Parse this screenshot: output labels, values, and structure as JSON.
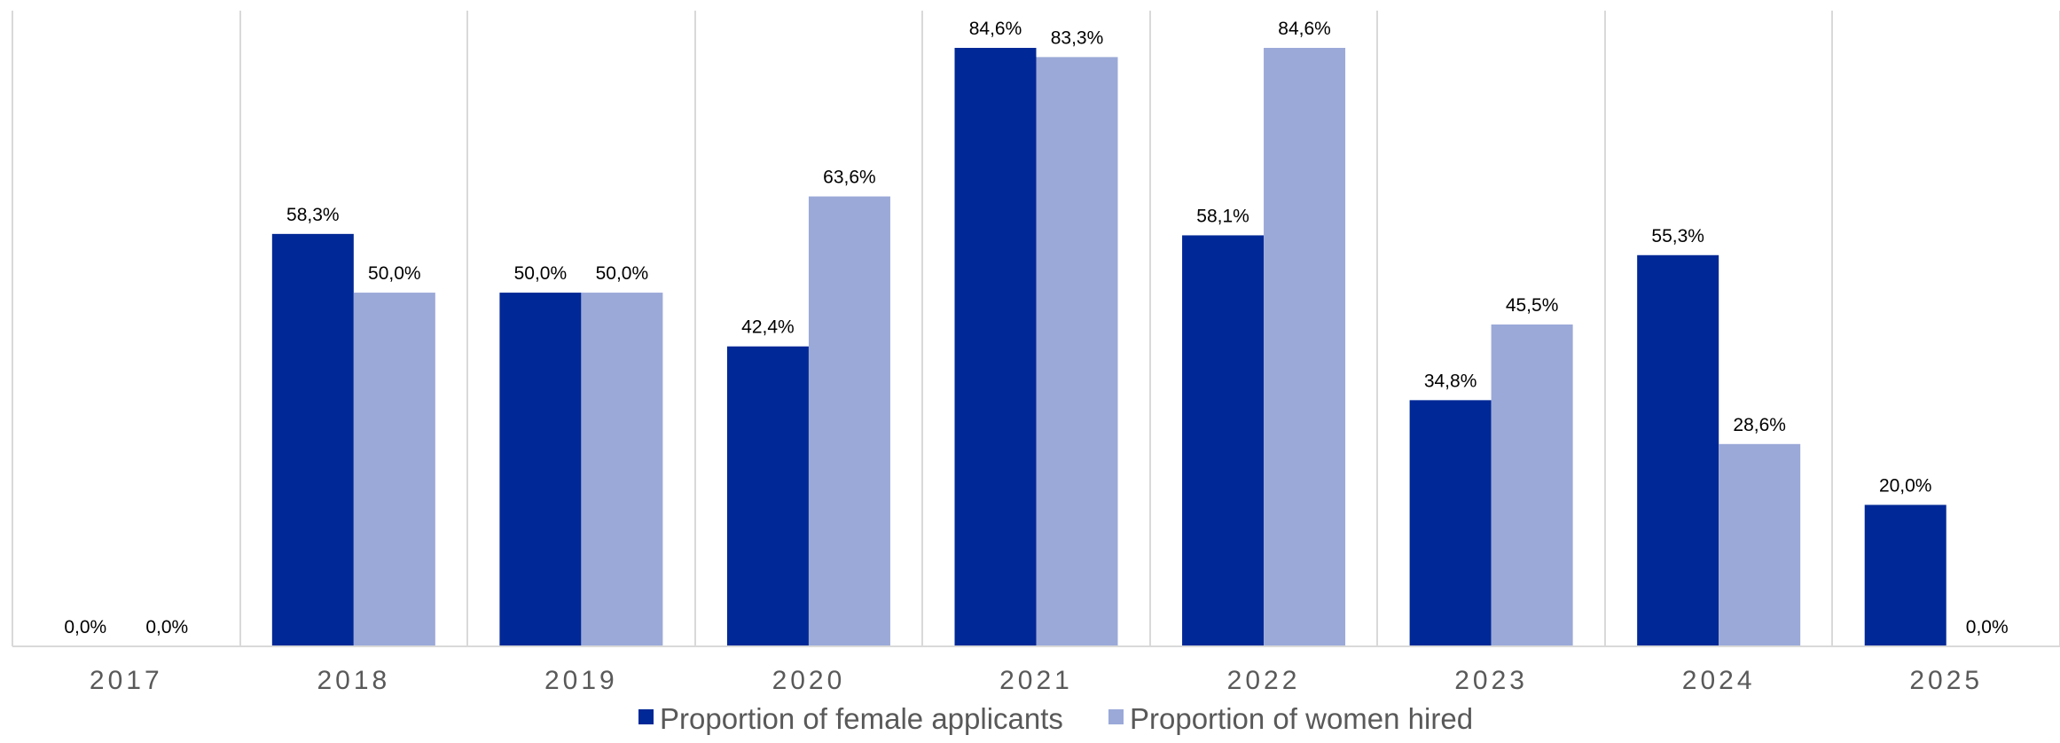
{
  "chart_data": {
    "type": "bar",
    "categories": [
      "2017",
      "2018",
      "2019",
      "2020",
      "2021",
      "2022",
      "2023",
      "2024",
      "2025"
    ],
    "series": [
      {
        "name": "Proportion of female applicants",
        "color": "#002896",
        "values": [
          0.0,
          58.3,
          50.0,
          42.4,
          84.6,
          58.1,
          34.8,
          55.3,
          20.0
        ],
        "labels": [
          "0,0%",
          "58,3%",
          "50,0%",
          "42,4%",
          "84,6%",
          "58,1%",
          "34,8%",
          "55,3%",
          "20,0%"
        ]
      },
      {
        "name": "Proportion of women hired",
        "color": "#9BA9D8",
        "values": [
          0.0,
          50.0,
          50.0,
          63.6,
          83.3,
          84.6,
          45.5,
          28.6,
          0.0
        ],
        "labels": [
          "0,0%",
          "50,0%",
          "50,0%",
          "63,6%",
          "83,3%",
          "84,6%",
          "45,5%",
          "28,6%",
          "0,0%"
        ]
      }
    ],
    "ylim": [
      0,
      84.6
    ],
    "grid": "vertical category separators",
    "legend_position": "bottom"
  }
}
